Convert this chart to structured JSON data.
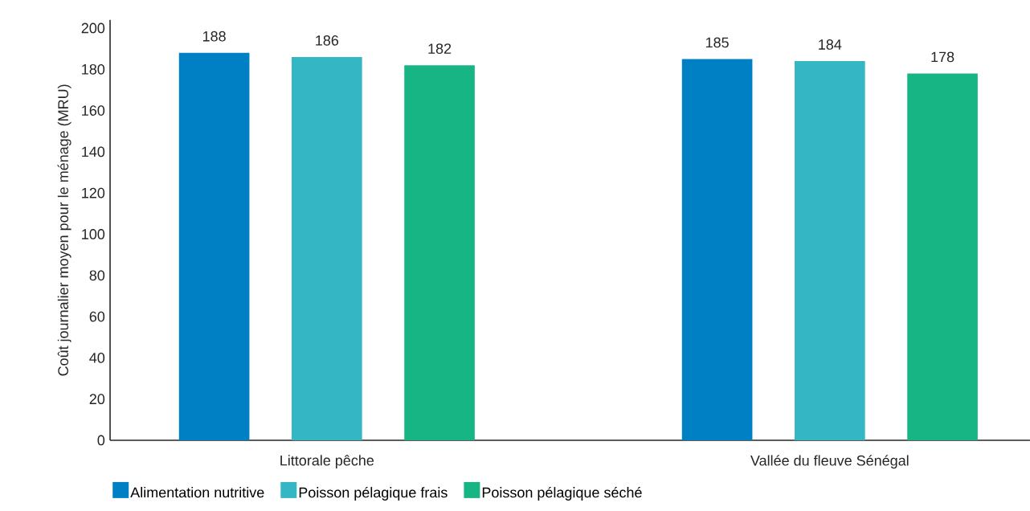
{
  "chart_data": {
    "type": "bar",
    "ylabel": "Coût journalier moyen pour le ménage (MRU)",
    "categories": [
      "Littorale pêche",
      "Vallée du fleuve Sénégal"
    ],
    "series": [
      {
        "name": "Alimentation nutritive",
        "color": "#0080c4",
        "values": [
          188,
          185
        ]
      },
      {
        "name": "Poisson pélagique frais",
        "color": "#35b6c5",
        "values": [
          186,
          184
        ]
      },
      {
        "name": "Poisson pélagique séché",
        "color": "#18b584",
        "values": [
          182,
          178
        ]
      }
    ],
    "ylim": [
      0,
      204
    ],
    "yticks": [
      0,
      20,
      40,
      60,
      80,
      100,
      120,
      140,
      160,
      180,
      200
    ],
    "data_labels": true,
    "legend": "bottom",
    "grid": false
  }
}
